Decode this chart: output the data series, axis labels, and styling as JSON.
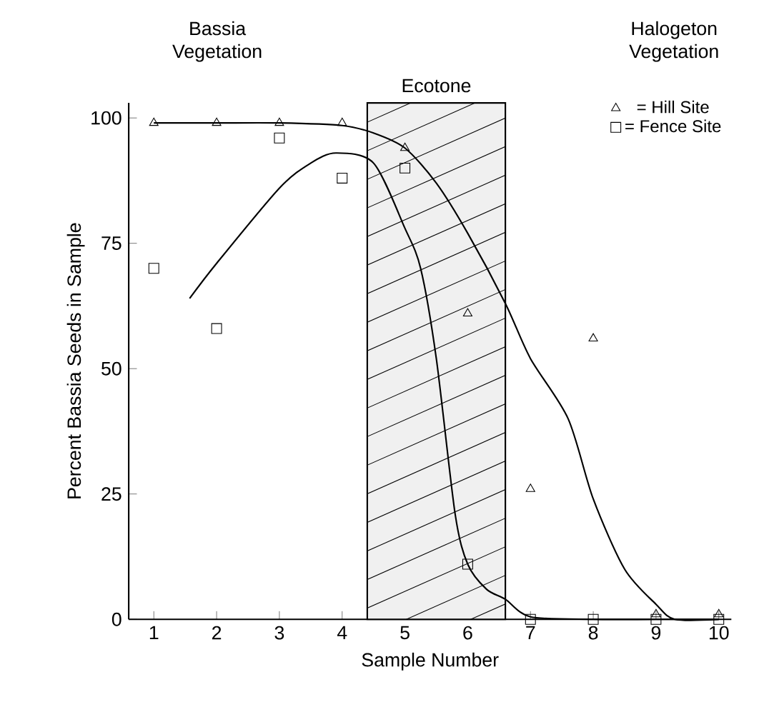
{
  "chart_data": {
    "type": "scatter",
    "xlabel": "Sample  Number",
    "ylabel": "Percent  Bassia  Seeds  in  Sample",
    "annotations": [
      "Bassia Vegetation",
      "Halogeton Vegetation"
    ],
    "x": [
      1,
      2,
      3,
      4,
      5,
      6,
      7,
      8,
      9,
      10
    ],
    "series": [
      {
        "name": "= Hill Site",
        "color": "#000000",
        "marker": "triangle",
        "values": [
          99,
          99,
          99,
          99,
          94,
          61,
          26,
          56,
          1,
          1
        ]
      },
      {
        "name": "= Fence Site",
        "color": "#000000",
        "marker": "square",
        "values": [
          70,
          58,
          96,
          88,
          90,
          11,
          0,
          0,
          0,
          0
        ]
      },
      {
        "type": "line",
        "color": "#000000",
        "marker": "none",
        "x": [
          1,
          2,
          3,
          4,
          4.5,
          5,
          5.5,
          6,
          6.6,
          7,
          7.6,
          8,
          8.5,
          9,
          9.3,
          10
        ],
        "values": [
          99,
          99,
          99,
          98.5,
          97,
          94,
          87,
          77,
          63,
          52,
          40,
          24,
          10,
          3,
          0,
          0
        ]
      },
      {
        "type": "line",
        "color": "#000000",
        "marker": "none",
        "x": [
          1.57,
          2,
          3,
          3.5,
          3.9,
          4.5,
          5,
          5.25,
          5.5,
          5.8,
          6,
          6.3,
          6.6,
          7,
          8,
          9,
          10
        ],
        "values": [
          64,
          71,
          86,
          91,
          93,
          91,
          78,
          70,
          52,
          21,
          11,
          6,
          4,
          0.5,
          0,
          0,
          0
        ]
      }
    ],
    "bands": [
      {
        "axis": "x",
        "from": 4.4,
        "to": 6.6,
        "label": "Ecotone",
        "color": "#f0f0f0"
      }
    ],
    "xlim": [
      0.6,
      10.2
    ],
    "ylim": [
      0,
      103
    ],
    "xticks": [
      1,
      2,
      3,
      4,
      5,
      6,
      7,
      8,
      9,
      10
    ],
    "yticks": [
      0,
      25,
      50,
      75,
      100
    ],
    "legend": "top right"
  }
}
